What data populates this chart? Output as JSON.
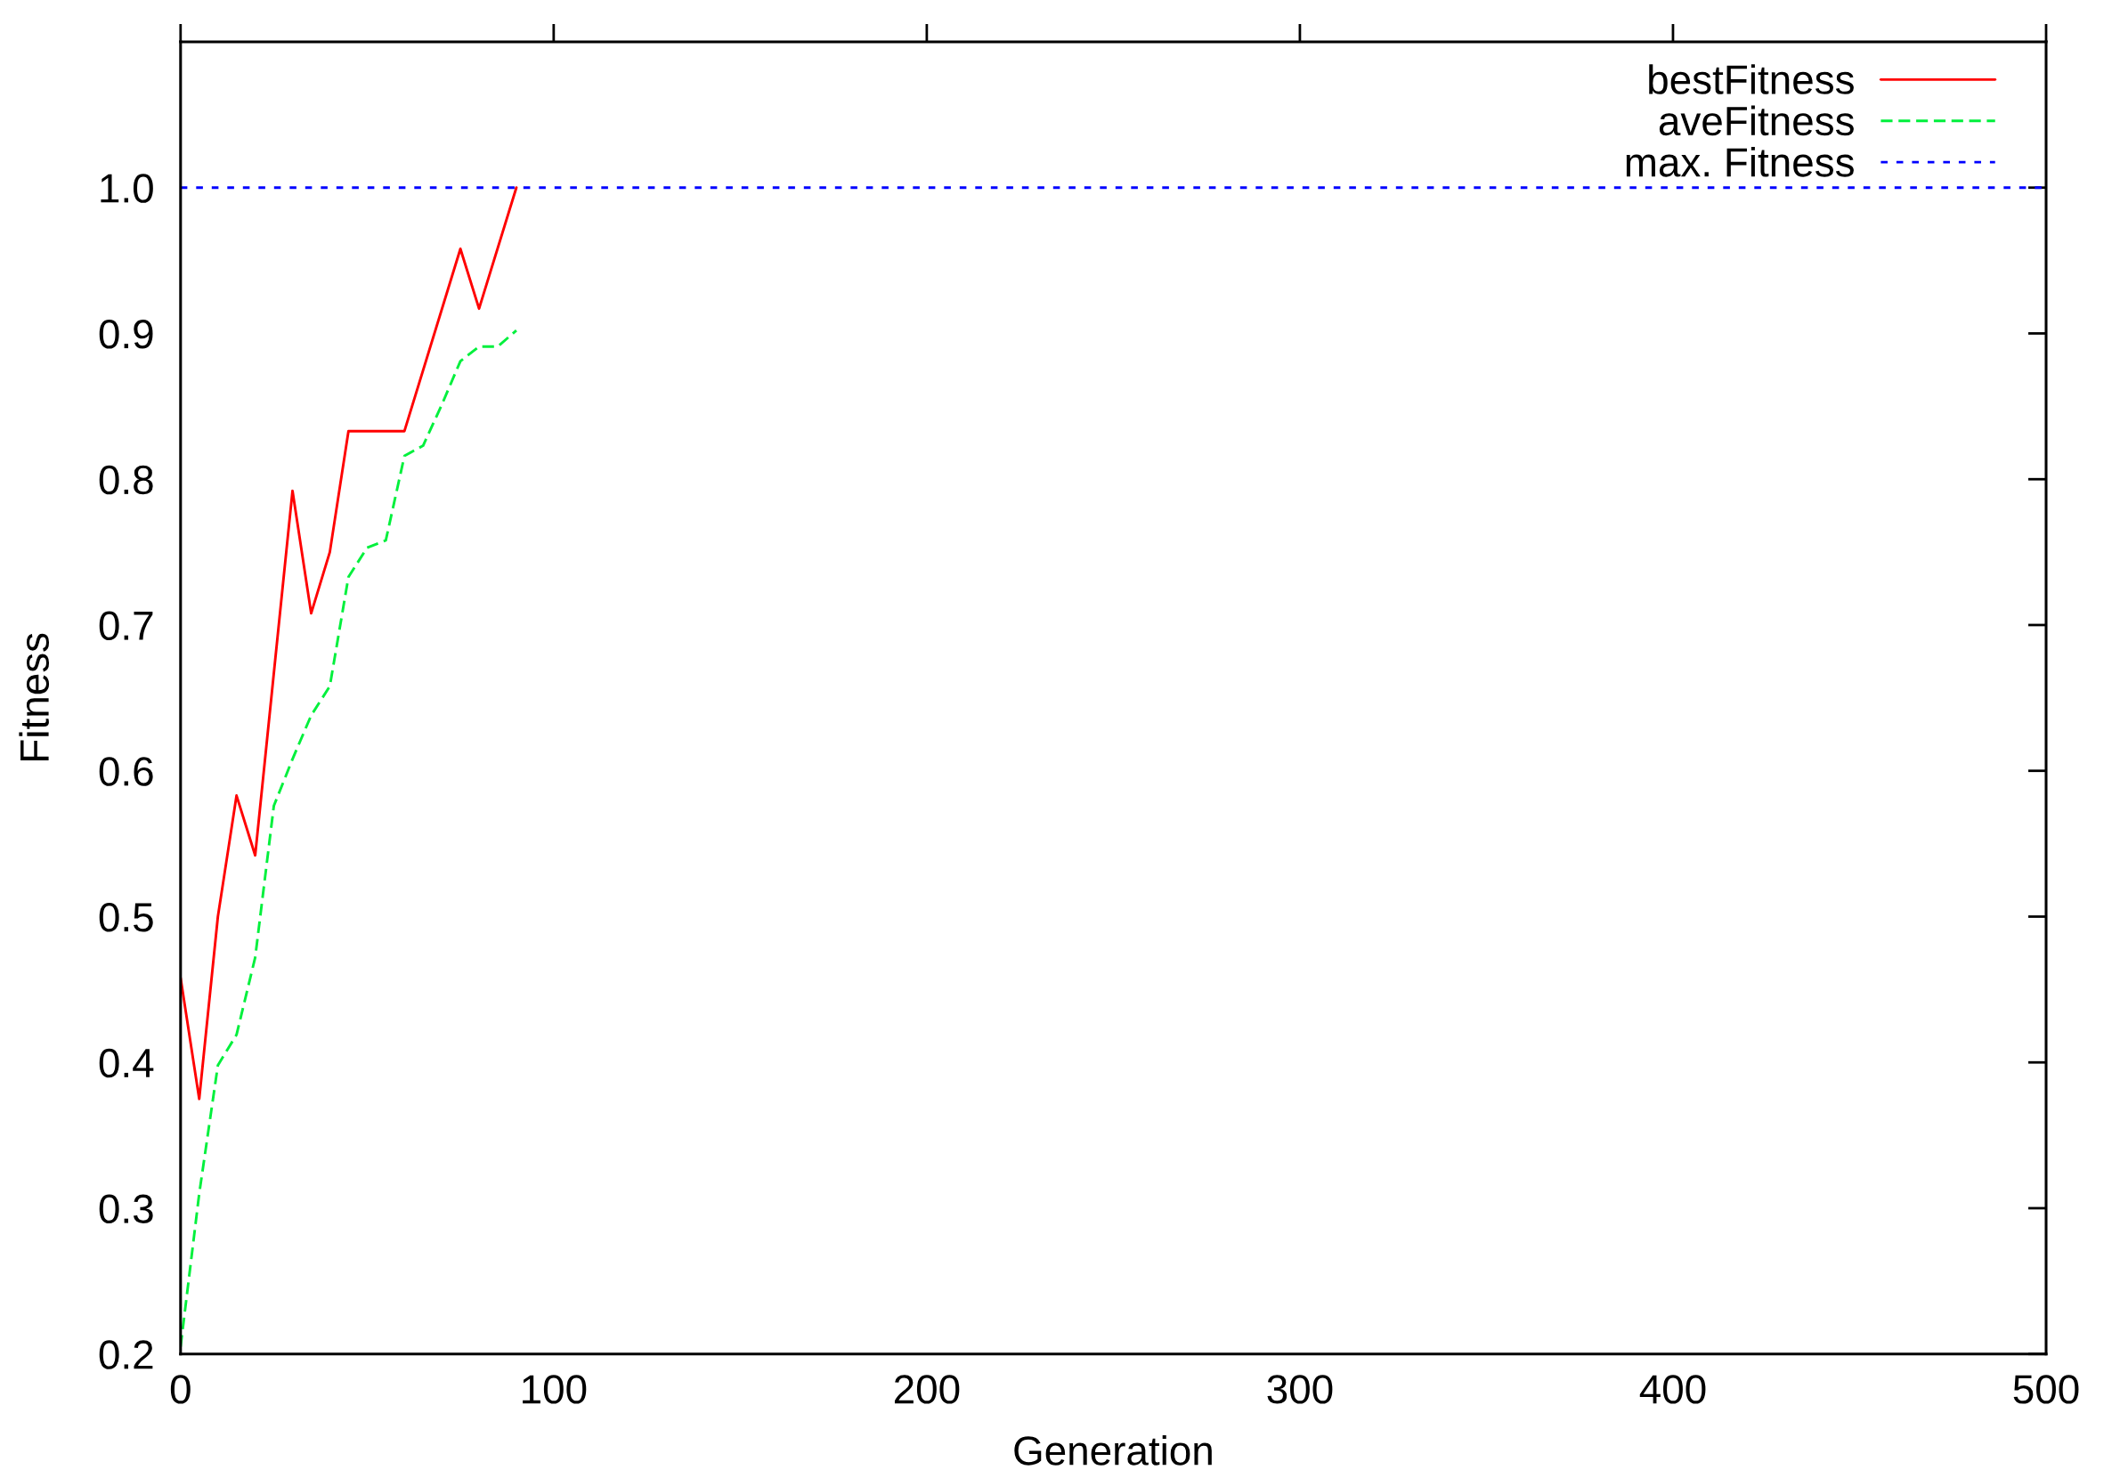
{
  "chart_data": {
    "type": "line",
    "xlabel": "Generation",
    "ylabel": "Fitness",
    "xlim": [
      0,
      500
    ],
    "xticks": [
      0,
      100,
      200,
      300,
      400,
      500
    ],
    "ylim": [
      0.2,
      1.1
    ],
    "yticks": [
      0.2,
      0.3,
      0.4,
      0.5,
      0.6,
      0.7,
      0.8,
      0.9,
      {
        "value": 1.0,
        "label": "1.0"
      }
    ],
    "grid": false,
    "legend": "top right",
    "series": [
      {
        "name": "bestFitness",
        "color": "#ff0000",
        "line_style": "solid",
        "x": [
          0,
          5,
          10,
          15,
          20,
          30,
          35,
          40,
          45,
          60,
          75,
          80,
          90
        ],
        "values": [
          0.458,
          0.375,
          0.5,
          0.583,
          0.542,
          0.792,
          0.708,
          0.75,
          0.833,
          0.833,
          0.958,
          0.917,
          1.0
        ]
      },
      {
        "name": "aveFitness",
        "color": "#00f03c",
        "line_style": "dashed",
        "x": [
          0,
          5,
          10,
          15,
          20,
          25,
          30,
          35,
          40,
          45,
          50,
          55,
          60,
          65,
          70,
          75,
          80,
          85,
          90
        ],
        "values": [
          0.205,
          0.31,
          0.398,
          0.419,
          0.472,
          0.576,
          0.608,
          0.638,
          0.658,
          0.733,
          0.753,
          0.758,
          0.816,
          0.823,
          0.851,
          0.881,
          0.891,
          0.891,
          0.902
        ]
      }
    ],
    "ref_lines": [
      {
        "axis": "y",
        "value": 1.0,
        "label": "max. Fitness",
        "color": "#0000ff",
        "line_style": "dotted"
      }
    ]
  }
}
